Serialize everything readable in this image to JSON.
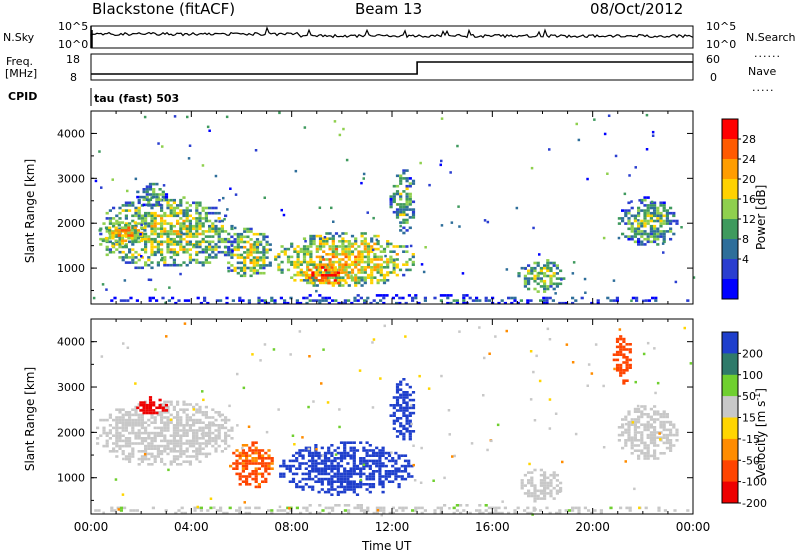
{
  "header": {
    "station": "Blackstone (fitACF)",
    "beam": "Beam 13",
    "date": "08/Oct/2012"
  },
  "strip_panels": {
    "nsky": {
      "label": "N.Sky",
      "ticks": [
        "10^5",
        "10^0"
      ]
    },
    "nsearch": {
      "label": "N.Search",
      "ticks": [
        "10^5",
        "10^0"
      ]
    },
    "freq": {
      "label_line1": "Freq.",
      "label_line2": "[MHz]",
      "ticks": [
        "18",
        "8"
      ]
    },
    "nave": {
      "label": "Nave",
      "ticks": [
        "60",
        "0"
      ]
    },
    "cpid": {
      "label": "CPID",
      "value": "tau (fast) 503"
    }
  },
  "colorbars": {
    "power": {
      "label": "Power [dB]",
      "ticks": [
        "28",
        "24",
        "20",
        "16",
        "12",
        "8",
        "4"
      ],
      "colors": [
        "#ff0000",
        "#ff5a00",
        "#ff9d00",
        "#ffd200",
        "#8fd04e",
        "#3f9a5e",
        "#2e6e9a",
        "#2a3ed0",
        "#0000ff"
      ]
    },
    "velocity": {
      "label_main": "Velocity [m s",
      "label_sup": "-1",
      "label_end": "]",
      "ticks": [
        "200",
        "100",
        "50",
        "15",
        "-15",
        "-50",
        "-100",
        "-200"
      ],
      "colors": [
        "#1f3fcc",
        "#2f7a6a",
        "#6fcf2f",
        "#c8c8c8",
        "#ffd500",
        "#ff8c00",
        "#ff4400",
        "#ee0000"
      ]
    }
  },
  "chart_data": [
    {
      "type": "heatmap",
      "name": "power",
      "ylabel": "Slant Range [km]",
      "xlabel": "",
      "yticks": [
        "1000",
        "2000",
        "3000",
        "4000"
      ],
      "ylim": [
        200,
        4500
      ],
      "xlim": [
        0,
        24
      ],
      "patches": [
        {
          "t0": 0.2,
          "t1": 5.6,
          "r0": 1000,
          "r1": 2600,
          "c": 0.55
        },
        {
          "t0": 1.8,
          "t1": 3.0,
          "r0": 2400,
          "r1": 2900,
          "c": 0.4
        },
        {
          "t0": 0.3,
          "t1": 2.2,
          "r0": 1500,
          "r1": 2100,
          "c": 0.7
        },
        {
          "t0": 5.3,
          "t1": 7.2,
          "r0": 800,
          "r1": 1900,
          "c": 0.55
        },
        {
          "t0": 7.3,
          "t1": 12.8,
          "r0": 600,
          "r1": 1800,
          "c": 0.65
        },
        {
          "t0": 8.4,
          "t1": 10.2,
          "r0": 650,
          "r1": 1100,
          "c": 0.9
        },
        {
          "t0": 11.9,
          "t1": 12.9,
          "r0": 1800,
          "r1": 3200,
          "c": 0.45
        },
        {
          "t0": 17.0,
          "t1": 18.8,
          "r0": 500,
          "r1": 1200,
          "c": 0.5
        },
        {
          "t0": 21.0,
          "t1": 23.3,
          "r0": 1500,
          "r1": 2600,
          "c": 0.45
        },
        {
          "t0": 0.0,
          "t1": 24.0,
          "r0": 220,
          "r1": 420,
          "c": 0.2
        }
      ]
    },
    {
      "type": "heatmap",
      "name": "velocity",
      "ylabel": "Slant Range [km]",
      "xlabel": "Time UT",
      "yticks": [
        "1000",
        "2000",
        "3000",
        "4000"
      ],
      "xticks": [
        "00:00",
        "04:00",
        "08:00",
        "12:00",
        "16:00",
        "20:00",
        "00:00"
      ],
      "ylim": [
        200,
        4500
      ],
      "xlim": [
        0,
        24
      ],
      "patches": [
        {
          "t0": 0.2,
          "t1": 5.6,
          "r0": 1300,
          "r1": 2700,
          "v": 0
        },
        {
          "t0": 1.8,
          "t1": 3.0,
          "r0": 2400,
          "r1": 2800,
          "v": -200
        },
        {
          "t0": 5.5,
          "t1": 7.2,
          "r0": 800,
          "r1": 1800,
          "v": -90
        },
        {
          "t0": 7.5,
          "t1": 12.8,
          "r0": 650,
          "r1": 1800,
          "v": 200
        },
        {
          "t0": 11.9,
          "t1": 12.9,
          "r0": 1800,
          "r1": 3200,
          "v": 200
        },
        {
          "t0": 17.0,
          "t1": 18.8,
          "r0": 500,
          "r1": 1200,
          "v": 0
        },
        {
          "t0": 21.0,
          "t1": 23.3,
          "r0": 1400,
          "r1": 2600,
          "v": 0
        },
        {
          "t0": 20.8,
          "t1": 21.5,
          "r0": 3100,
          "r1": 4200,
          "v": -120
        },
        {
          "t0": 0.0,
          "t1": 24.0,
          "r0": 220,
          "r1": 420,
          "v": 20
        }
      ]
    }
  ]
}
